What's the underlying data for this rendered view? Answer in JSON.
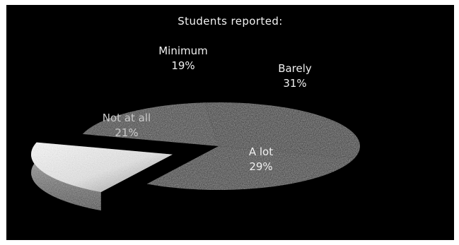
{
  "chart_data": {
    "type": "pie",
    "title": "Students reported:",
    "slices": [
      {
        "label": "Minimum",
        "value": 19,
        "value_label": "19%",
        "color": "#2a2a2a"
      },
      {
        "label": "Barely",
        "value": 31,
        "value_label": "31%",
        "color": "#1f1f1f"
      },
      {
        "label": "A lot",
        "value": 29,
        "value_label": "29%",
        "color": "#262626"
      },
      {
        "label": "Not at all",
        "value": 21,
        "value_label": "21%",
        "color": "#e9e9e9"
      }
    ],
    "style": "3d-pie-dark-scan",
    "background": "#000000"
  }
}
